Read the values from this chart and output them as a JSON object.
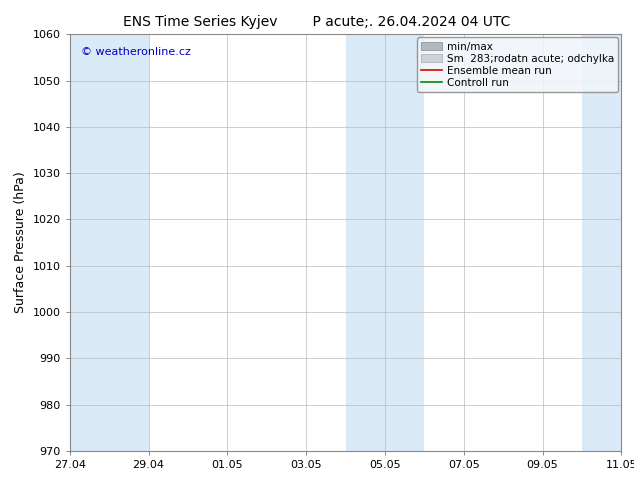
{
  "title_left": "ENS Time Series Kyjev",
  "title_right": "P acute;. 26.04.2024 04 UTC",
  "ylabel": "Surface Pressure (hPa)",
  "ylim": [
    970,
    1060
  ],
  "yticks": [
    970,
    980,
    990,
    1000,
    1010,
    1020,
    1030,
    1040,
    1050,
    1060
  ],
  "x_start": "2024-04-27",
  "x_end": "2024-05-11",
  "xtick_labels": [
    "27.04",
    "29.04",
    "01.05",
    "03.05",
    "05.05",
    "07.05",
    "09.05",
    "11.05"
  ],
  "xtick_dates": [
    "2024-04-27",
    "2024-04-29",
    "2024-05-01",
    "2024-05-03",
    "2024-05-05",
    "2024-05-07",
    "2024-05-09",
    "2024-05-11"
  ],
  "shaded_bands": [
    {
      "start": "2024-04-27",
      "end": "2024-04-29",
      "color": "#daeaf7"
    },
    {
      "start": "2024-05-04",
      "end": "2024-05-06",
      "color": "#daeaf7"
    },
    {
      "start": "2024-05-10",
      "end": "2024-05-11",
      "color": "#daeaf7"
    }
  ],
  "background_color": "#ffffff",
  "plot_bg_color": "#ffffff",
  "grid_color": "#bbbbbb",
  "copyright_text": "© weatheronline.cz",
  "copyright_color": "#0000cc",
  "legend_minmax_color": "#b0b8c0",
  "legend_sm_color": "#c8d4dc",
  "legend_ens_color": "#dd0000",
  "legend_ctrl_color": "#008800",
  "title_fontsize": 10,
  "axis_label_fontsize": 9,
  "tick_fontsize": 8,
  "legend_fontsize": 7.5
}
